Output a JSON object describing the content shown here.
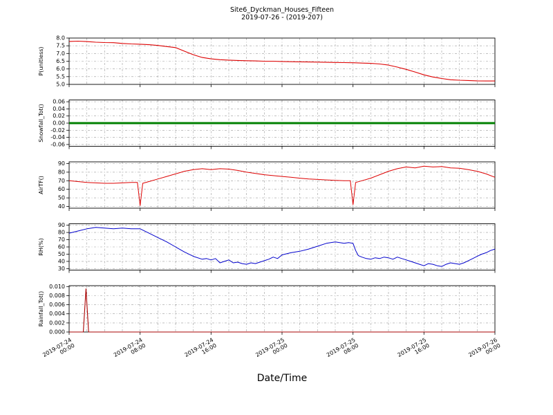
{
  "header": {
    "title": "Site6_Dyckman_Houses_Fifteen",
    "subtitle": "2019-07-26 - (2019-207)"
  },
  "axes": {
    "xlabel": "Date/Time"
  },
  "chart_data": {
    "type": "line",
    "title": "Site6_Dyckman_Houses_Fifteen",
    "subtitle": "2019-07-26 - (2019-207)",
    "xlabel": "Date/Time",
    "x_unit": "hours since 2019-07-24 00:00",
    "xlim": [
      0,
      48
    ],
    "xticks": [
      0,
      8,
      16,
      24,
      32,
      40,
      48
    ],
    "xtick_labels": [
      [
        "2019-07-24",
        "00:00"
      ],
      [
        "2019-07-24",
        "08:00"
      ],
      [
        "2019-07-24",
        "16:00"
      ],
      [
        "2019-07-25",
        "00:00"
      ],
      [
        "2019-07-25",
        "08:00"
      ],
      [
        "2019-07-25",
        "16:00"
      ],
      [
        "2019-07-26",
        "00:00"
      ]
    ],
    "minor_x_step": 2,
    "grid": true,
    "grid_color": "#9a9a9a",
    "panels": [
      {
        "name": "P",
        "ylabel": "P(unitless)",
        "color": "#dd0000",
        "line_width": 1.1,
        "ylim": [
          5.0,
          8.0
        ],
        "ytick_values": [
          5.0,
          5.5,
          6.0,
          6.5,
          7.0,
          7.5,
          8.0
        ],
        "ytick_labels": [
          "5.0",
          "5.5",
          "6.0",
          "6.5",
          "7.0",
          "7.5",
          "8.0"
        ],
        "points": [
          [
            0,
            7.78
          ],
          [
            1,
            7.8
          ],
          [
            2,
            7.77
          ],
          [
            3,
            7.73
          ],
          [
            4,
            7.71
          ],
          [
            5,
            7.7
          ],
          [
            6,
            7.65
          ],
          [
            7,
            7.62
          ],
          [
            8,
            7.6
          ],
          [
            9,
            7.57
          ],
          [
            10,
            7.52
          ],
          [
            11,
            7.45
          ],
          [
            12,
            7.38
          ],
          [
            13,
            7.15
          ],
          [
            14,
            6.92
          ],
          [
            15,
            6.74
          ],
          [
            16,
            6.65
          ],
          [
            17,
            6.6
          ],
          [
            18,
            6.57
          ],
          [
            19,
            6.55
          ],
          [
            20,
            6.53
          ],
          [
            21,
            6.52
          ],
          [
            22,
            6.5
          ],
          [
            23,
            6.5
          ],
          [
            24,
            6.48
          ],
          [
            25,
            6.47
          ],
          [
            26,
            6.46
          ],
          [
            27,
            6.45
          ],
          [
            28,
            6.44
          ],
          [
            29,
            6.43
          ],
          [
            30,
            6.42
          ],
          [
            31,
            6.41
          ],
          [
            32,
            6.4
          ],
          [
            33,
            6.38
          ],
          [
            34,
            6.36
          ],
          [
            35,
            6.32
          ],
          [
            36,
            6.25
          ],
          [
            37,
            6.12
          ],
          [
            38,
            5.97
          ],
          [
            39,
            5.8
          ],
          [
            40,
            5.62
          ],
          [
            41,
            5.48
          ],
          [
            42,
            5.38
          ],
          [
            43,
            5.3
          ],
          [
            44,
            5.27
          ],
          [
            45,
            5.25
          ],
          [
            46,
            5.23
          ],
          [
            47,
            5.22
          ],
          [
            48,
            5.22
          ]
        ]
      },
      {
        "name": "Snowfall_Tot",
        "ylabel": "Snowfall_Tot()",
        "color": "#008000",
        "line_width": 3,
        "ylim": [
          -0.065,
          0.065
        ],
        "ytick_values": [
          -0.06,
          -0.04,
          -0.02,
          0.0,
          0.02,
          0.04,
          0.06
        ],
        "ytick_labels": [
          "-0.06",
          "-0.04",
          "-0.02",
          "0.00",
          "0.02",
          "0.04",
          "0.06"
        ],
        "points": [
          [
            0,
            0
          ],
          [
            48,
            0
          ]
        ]
      },
      {
        "name": "AirTF",
        "ylabel": "AirTF()",
        "color": "#dd0000",
        "line_width": 1.0,
        "ylim": [
          38,
          92
        ],
        "ytick_values": [
          40,
          50,
          60,
          70,
          80,
          90
        ],
        "ytick_labels": [
          "40",
          "50",
          "60",
          "70",
          "80",
          "90"
        ],
        "points": [
          [
            0,
            70
          ],
          [
            1,
            69
          ],
          [
            2,
            68
          ],
          [
            3,
            67.5
          ],
          [
            4,
            67
          ],
          [
            5,
            67
          ],
          [
            6,
            67.5
          ],
          [
            7,
            68
          ],
          [
            7.7,
            68
          ],
          [
            8,
            41
          ],
          [
            8.3,
            67
          ],
          [
            9,
            69
          ],
          [
            10,
            72
          ],
          [
            11,
            75
          ],
          [
            12,
            78
          ],
          [
            13,
            81
          ],
          [
            14,
            83
          ],
          [
            15,
            84
          ],
          [
            16,
            83
          ],
          [
            17,
            84
          ],
          [
            18,
            83.5
          ],
          [
            19,
            82
          ],
          [
            20,
            80
          ],
          [
            21,
            78.5
          ],
          [
            22,
            77
          ],
          [
            23,
            76
          ],
          [
            24,
            75
          ],
          [
            25,
            74
          ],
          [
            26,
            73
          ],
          [
            27,
            72
          ],
          [
            28,
            71.5
          ],
          [
            29,
            71
          ],
          [
            30,
            70.5
          ],
          [
            31,
            70
          ],
          [
            31.7,
            70
          ],
          [
            32,
            42
          ],
          [
            32.3,
            68
          ],
          [
            33,
            70
          ],
          [
            34,
            73
          ],
          [
            35,
            77
          ],
          [
            36,
            81
          ],
          [
            37,
            84
          ],
          [
            38,
            86
          ],
          [
            39,
            85
          ],
          [
            40,
            87
          ],
          [
            41,
            86
          ],
          [
            42,
            86.5
          ],
          [
            43,
            85
          ],
          [
            44,
            84.5
          ],
          [
            45,
            83
          ],
          [
            46,
            81
          ],
          [
            47,
            78
          ],
          [
            48,
            74
          ]
        ]
      },
      {
        "name": "RH",
        "ylabel": "RH(%)",
        "color": "#0000cc",
        "line_width": 1.0,
        "ylim": [
          28,
          92
        ],
        "ytick_values": [
          30,
          40,
          50,
          60,
          70,
          80,
          90
        ],
        "ytick_labels": [
          "30",
          "40",
          "50",
          "60",
          "70",
          "80",
          "90"
        ],
        "points": [
          [
            0,
            79
          ],
          [
            1,
            82
          ],
          [
            2,
            85
          ],
          [
            3,
            87
          ],
          [
            4,
            86
          ],
          [
            5,
            85
          ],
          [
            6,
            86
          ],
          [
            7,
            85
          ],
          [
            8,
            85
          ],
          [
            9,
            79
          ],
          [
            10,
            73
          ],
          [
            11,
            67
          ],
          [
            12,
            60
          ],
          [
            13,
            53
          ],
          [
            14,
            47
          ],
          [
            15,
            43
          ],
          [
            15.5,
            44
          ],
          [
            16,
            42
          ],
          [
            16.5,
            44
          ],
          [
            17,
            38
          ],
          [
            17.5,
            40
          ],
          [
            18,
            42
          ],
          [
            18.5,
            38
          ],
          [
            19,
            39
          ],
          [
            19.5,
            37
          ],
          [
            20,
            36
          ],
          [
            20.5,
            38
          ],
          [
            21,
            37
          ],
          [
            21.5,
            39
          ],
          [
            22,
            41
          ],
          [
            22.5,
            43
          ],
          [
            23,
            46
          ],
          [
            23.5,
            44
          ],
          [
            24,
            49
          ],
          [
            25,
            52
          ],
          [
            26,
            54
          ],
          [
            27,
            57
          ],
          [
            28,
            61
          ],
          [
            29,
            65
          ],
          [
            30,
            67
          ],
          [
            30.5,
            66
          ],
          [
            31,
            65
          ],
          [
            31.5,
            66
          ],
          [
            32,
            65
          ],
          [
            32.3,
            55
          ],
          [
            32.6,
            48
          ],
          [
            33,
            46
          ],
          [
            33.5,
            44
          ],
          [
            34,
            43
          ],
          [
            34.5,
            45
          ],
          [
            35,
            44
          ],
          [
            35.5,
            46
          ],
          [
            36,
            45
          ],
          [
            36.5,
            43
          ],
          [
            37,
            46
          ],
          [
            37.5,
            44
          ],
          [
            38,
            42
          ],
          [
            38.5,
            40
          ],
          [
            39,
            38
          ],
          [
            39.5,
            36
          ],
          [
            40,
            34
          ],
          [
            40.5,
            37
          ],
          [
            41,
            36
          ],
          [
            41.5,
            34
          ],
          [
            42,
            33
          ],
          [
            42.5,
            36
          ],
          [
            43,
            38
          ],
          [
            43.5,
            37
          ],
          [
            44,
            36
          ],
          [
            44.5,
            38
          ],
          [
            45,
            41
          ],
          [
            45.5,
            44
          ],
          [
            46,
            47
          ],
          [
            46.5,
            50
          ],
          [
            47,
            52
          ],
          [
            47.5,
            55
          ],
          [
            48,
            57
          ]
        ]
      },
      {
        "name": "Rainfall_Tot",
        "ylabel": "Rainfall_Tot()",
        "color": "#aa0000",
        "line_width": 1.1,
        "ylim": [
          0,
          0.0102
        ],
        "ytick_values": [
          0.0,
          0.002,
          0.004,
          0.006,
          0.008,
          0.01
        ],
        "ytick_labels": [
          "0.000",
          "0.002",
          "0.004",
          "0.006",
          "0.008",
          "0.010"
        ],
        "points": [
          [
            0,
            0
          ],
          [
            1.6,
            0
          ],
          [
            1.9,
            0.0095
          ],
          [
            2.2,
            0
          ],
          [
            48,
            0
          ]
        ]
      }
    ]
  }
}
